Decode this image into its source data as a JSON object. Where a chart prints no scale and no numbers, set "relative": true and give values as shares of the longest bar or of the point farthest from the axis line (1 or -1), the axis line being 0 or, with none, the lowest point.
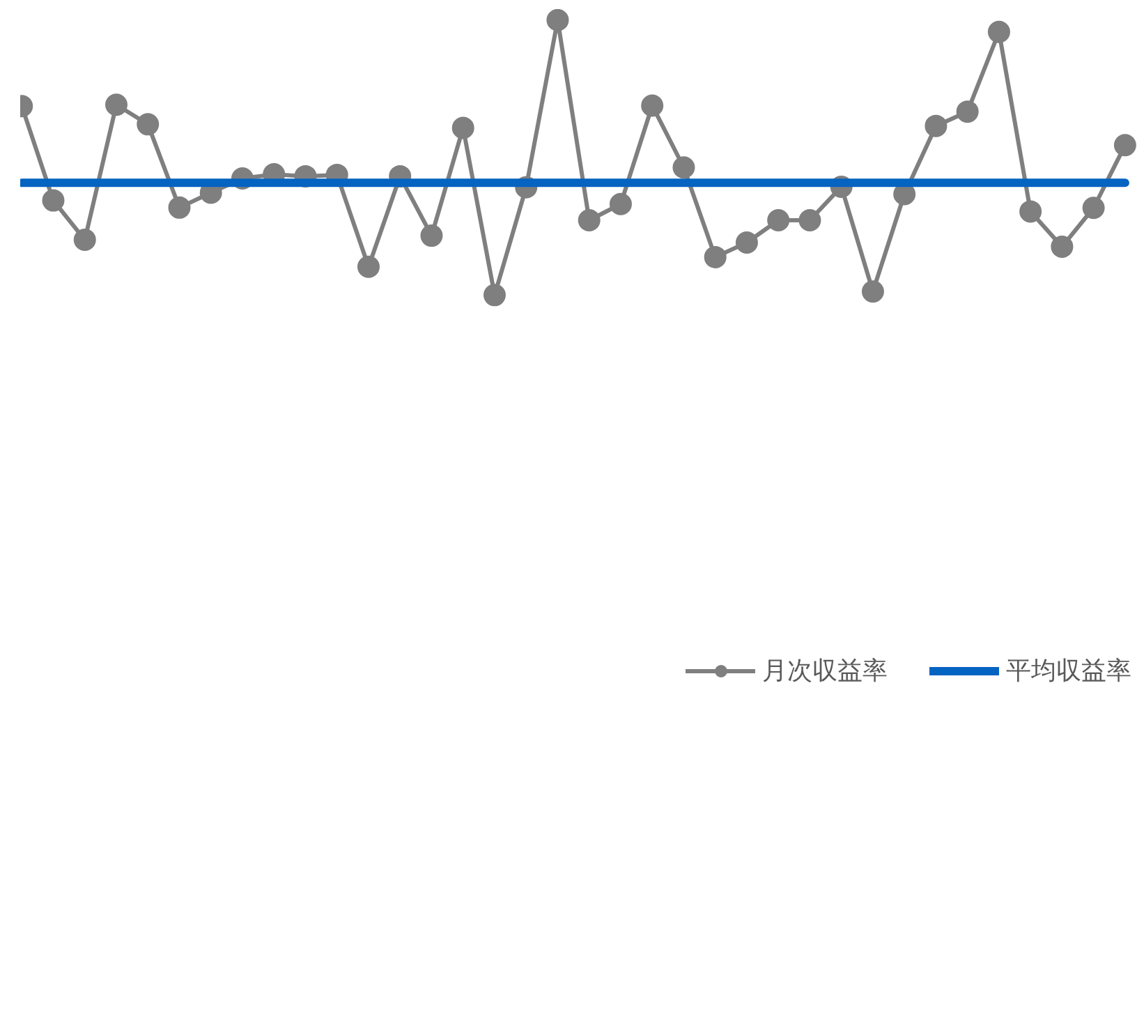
{
  "chart_data": {
    "type": "line",
    "relative": true,
    "categories": [
      null,
      null,
      null,
      null,
      null,
      null,
      null,
      null,
      null,
      null,
      null,
      null,
      null,
      null,
      null,
      null,
      null,
      null,
      null,
      null,
      null,
      null,
      null,
      null,
      null,
      null,
      null,
      null,
      null,
      null,
      null,
      null,
      null,
      null,
      null,
      null
    ],
    "series": [
      {
        "name": "月次収益率",
        "color": "#7f7f7f",
        "marker": "circle",
        "values": [
          0.687,
          0.344,
          0.201,
          0.692,
          0.621,
          0.318,
          0.372,
          0.424,
          0.439,
          0.432,
          0.437,
          0.103,
          0.432,
          0.216,
          0.608,
          0,
          0.392,
          1,
          0.272,
          0.331,
          0.689,
          0.464,
          0.138,
          0.191,
          0.272,
          0.272,
          0.394,
          0.013,
          0.367,
          0.615,
          0.667,
          0.957,
          0.304,
          0.176,
          0.317,
          0.545
        ]
      },
      {
        "name": "平均収益率",
        "color": "#0563c1",
        "marker": "none",
        "values": [
          0.408,
          0.408,
          0.408,
          0.408,
          0.408,
          0.408,
          0.408,
          0.408,
          0.408,
          0.408,
          0.408,
          0.408,
          0.408,
          0.408,
          0.408,
          0.408,
          0.408,
          0.408,
          0.408,
          0.408,
          0.408,
          0.408,
          0.408,
          0.408,
          0.408,
          0.408,
          0.408,
          0.408,
          0.408,
          0.408,
          0.408,
          0.408,
          0.408,
          0.408,
          0.408,
          0.408
        ]
      }
    ],
    "legend": "bottom",
    "grid": false
  }
}
